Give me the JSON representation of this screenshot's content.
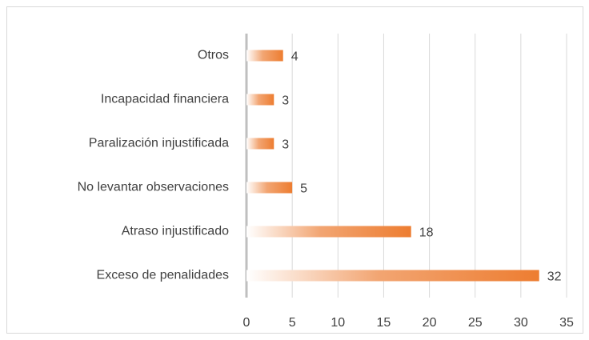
{
  "chart_data": {
    "type": "bar",
    "orientation": "horizontal",
    "categories": [
      "Otros",
      "Incapacidad financiera",
      "Paralización injustificada",
      "No levantar observaciones",
      "Atraso injustificado",
      "Exceso de penalidades"
    ],
    "values": [
      4,
      3,
      3,
      5,
      18,
      32
    ],
    "color": "#ed7d31",
    "xlim": [
      0,
      35
    ],
    "xticks": [
      0,
      5,
      10,
      15,
      20,
      25,
      30,
      35
    ],
    "grid": true
  }
}
